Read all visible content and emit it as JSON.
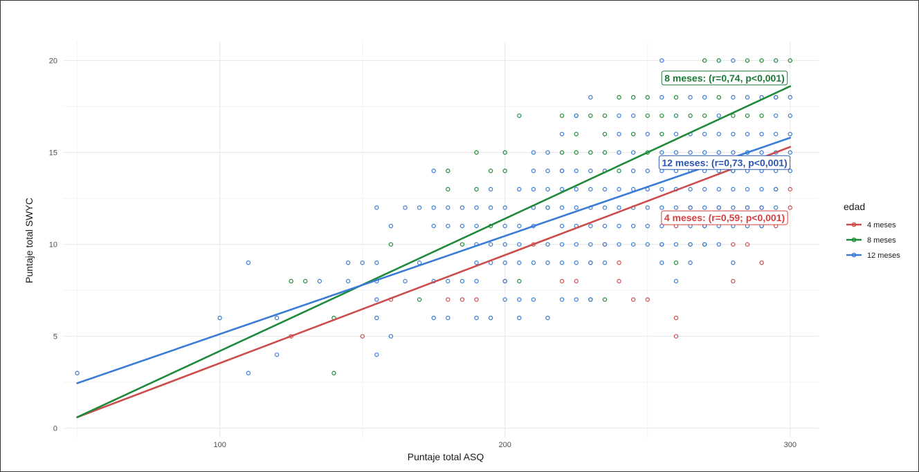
{
  "chart_data": {
    "type": "scatter",
    "xlabel": "Puntaje total ASQ",
    "ylabel": "Puntaje total SWYC",
    "xlim": [
      45,
      310
    ],
    "ylim": [
      0,
      20
    ],
    "x_ticks": [
      100,
      200,
      300
    ],
    "y_ticks": [
      0,
      5,
      10,
      15,
      20
    ],
    "x_tick_labels": [
      "100",
      "200",
      "300"
    ],
    "y_tick_labels": [
      "0",
      "5",
      "10",
      "15",
      "20"
    ],
    "grid": true,
    "legend": {
      "title": "edad",
      "placement": "right",
      "entries": [
        "4 meses",
        "8 meses",
        "12 meses"
      ]
    },
    "series": [
      {
        "name": "4 meses",
        "color": "#cc4c4c",
        "points": [
          [
            125,
            5
          ],
          [
            150,
            5
          ],
          [
            160,
            7
          ],
          [
            180,
            7
          ],
          [
            185,
            7
          ],
          [
            190,
            7
          ],
          [
            200,
            8
          ],
          [
            210,
            10
          ],
          [
            220,
            8
          ],
          [
            220,
            14
          ],
          [
            225,
            8
          ],
          [
            230,
            9
          ],
          [
            235,
            10
          ],
          [
            240,
            9
          ],
          [
            240,
            8
          ],
          [
            245,
            7
          ],
          [
            250,
            7
          ],
          [
            255,
            10
          ],
          [
            260,
            5
          ],
          [
            260,
            6
          ],
          [
            260,
            11
          ],
          [
            265,
            12
          ],
          [
            270,
            11
          ],
          [
            275,
            12
          ],
          [
            280,
            8
          ],
          [
            280,
            10
          ],
          [
            285,
            10
          ],
          [
            285,
            12
          ],
          [
            290,
            9
          ],
          [
            290,
            11
          ],
          [
            290,
            12
          ],
          [
            295,
            11
          ],
          [
            295,
            13
          ],
          [
            300,
            12
          ],
          [
            300,
            13
          ]
        ],
        "fit": {
          "x": [
            50,
            300
          ],
          "y": [
            0.6,
            15.3
          ]
        }
      },
      {
        "name": "8 meses",
        "color": "#1f8a3a",
        "points": [
          [
            125,
            8
          ],
          [
            130,
            8
          ],
          [
            140,
            3
          ],
          [
            140,
            6
          ],
          [
            160,
            10
          ],
          [
            170,
            7
          ],
          [
            180,
            13
          ],
          [
            180,
            14
          ],
          [
            185,
            10
          ],
          [
            190,
            13
          ],
          [
            190,
            15
          ],
          [
            195,
            11
          ],
          [
            195,
            14
          ],
          [
            200,
            14
          ],
          [
            200,
            15
          ],
          [
            205,
            8
          ],
          [
            205,
            17
          ],
          [
            215,
            12
          ],
          [
            220,
            15
          ],
          [
            220,
            17
          ],
          [
            225,
            15
          ],
          [
            225,
            16
          ],
          [
            225,
            17
          ],
          [
            230,
            7
          ],
          [
            230,
            15
          ],
          [
            230,
            17
          ],
          [
            235,
            7
          ],
          [
            235,
            15
          ],
          [
            235,
            16
          ],
          [
            235,
            17
          ],
          [
            240,
            14
          ],
          [
            240,
            18
          ],
          [
            245,
            16
          ],
          [
            245,
            18
          ],
          [
            250,
            15
          ],
          [
            250,
            17
          ],
          [
            250,
            18
          ],
          [
            255,
            16
          ],
          [
            255,
            17
          ],
          [
            260,
            9
          ],
          [
            260,
            17
          ],
          [
            260,
            18
          ],
          [
            265,
            10
          ],
          [
            265,
            17
          ],
          [
            270,
            10
          ],
          [
            270,
            17
          ],
          [
            270,
            20
          ],
          [
            275,
            18
          ],
          [
            275,
            20
          ],
          [
            280,
            14
          ],
          [
            280,
            17
          ],
          [
            280,
            19
          ],
          [
            285,
            15
          ],
          [
            285,
            17
          ],
          [
            285,
            20
          ],
          [
            290,
            17
          ],
          [
            290,
            19
          ],
          [
            290,
            20
          ],
          [
            295,
            18
          ],
          [
            295,
            20
          ],
          [
            300,
            20
          ]
        ],
        "fit": {
          "x": [
            50,
            300
          ],
          "y": [
            0.6,
            18.6
          ]
        }
      },
      {
        "name": "12 meses",
        "color": "#3a7bd5",
        "points": [
          [
            50,
            3
          ],
          [
            100,
            6
          ],
          [
            110,
            3
          ],
          [
            110,
            9
          ],
          [
            120,
            4
          ],
          [
            120,
            6
          ],
          [
            135,
            8
          ],
          [
            145,
            8
          ],
          [
            145,
            9
          ],
          [
            150,
            9
          ],
          [
            155,
            4
          ],
          [
            155,
            6
          ],
          [
            155,
            7
          ],
          [
            155,
            8
          ],
          [
            155,
            9
          ],
          [
            155,
            12
          ],
          [
            160,
            5
          ],
          [
            160,
            11
          ],
          [
            165,
            8
          ],
          [
            165,
            12
          ],
          [
            170,
            9
          ],
          [
            170,
            12
          ],
          [
            175,
            6
          ],
          [
            175,
            8
          ],
          [
            175,
            11
          ],
          [
            175,
            12
          ],
          [
            175,
            14
          ],
          [
            180,
            6
          ],
          [
            180,
            8
          ],
          [
            180,
            11
          ],
          [
            180,
            12
          ],
          [
            185,
            8
          ],
          [
            185,
            11
          ],
          [
            185,
            12
          ],
          [
            190,
            6
          ],
          [
            190,
            8
          ],
          [
            190,
            9
          ],
          [
            190,
            10
          ],
          [
            190,
            11
          ],
          [
            190,
            12
          ],
          [
            195,
            6
          ],
          [
            195,
            9
          ],
          [
            195,
            10
          ],
          [
            195,
            12
          ],
          [
            195,
            13
          ],
          [
            200,
            7
          ],
          [
            200,
            8
          ],
          [
            200,
            9
          ],
          [
            200,
            10
          ],
          [
            200,
            11
          ],
          [
            200,
            12
          ],
          [
            205,
            6
          ],
          [
            205,
            7
          ],
          [
            205,
            9
          ],
          [
            205,
            10
          ],
          [
            205,
            11
          ],
          [
            205,
            13
          ],
          [
            210,
            7
          ],
          [
            210,
            9
          ],
          [
            210,
            11
          ],
          [
            210,
            12
          ],
          [
            210,
            13
          ],
          [
            210,
            14
          ],
          [
            210,
            15
          ],
          [
            215,
            6
          ],
          [
            215,
            9
          ],
          [
            215,
            10
          ],
          [
            215,
            12
          ],
          [
            215,
            13
          ],
          [
            215,
            14
          ],
          [
            215,
            15
          ],
          [
            220,
            7
          ],
          [
            220,
            9
          ],
          [
            220,
            10
          ],
          [
            220,
            11
          ],
          [
            220,
            12
          ],
          [
            220,
            13
          ],
          [
            220,
            14
          ],
          [
            220,
            16
          ],
          [
            225,
            7
          ],
          [
            225,
            9
          ],
          [
            225,
            10
          ],
          [
            225,
            11
          ],
          [
            225,
            12
          ],
          [
            225,
            13
          ],
          [
            225,
            14
          ],
          [
            225,
            17
          ],
          [
            230,
            7
          ],
          [
            230,
            9
          ],
          [
            230,
            10
          ],
          [
            230,
            11
          ],
          [
            230,
            12
          ],
          [
            230,
            13
          ],
          [
            230,
            14
          ],
          [
            230,
            18
          ],
          [
            235,
            9
          ],
          [
            235,
            10
          ],
          [
            235,
            11
          ],
          [
            235,
            12
          ],
          [
            235,
            13
          ],
          [
            235,
            14
          ],
          [
            240,
            10
          ],
          [
            240,
            11
          ],
          [
            240,
            12
          ],
          [
            240,
            13
          ],
          [
            240,
            15
          ],
          [
            240,
            16
          ],
          [
            240,
            17
          ],
          [
            245,
            10
          ],
          [
            245,
            11
          ],
          [
            245,
            12
          ],
          [
            245,
            13
          ],
          [
            245,
            14
          ],
          [
            245,
            15
          ],
          [
            245,
            17
          ],
          [
            250,
            10
          ],
          [
            250,
            11
          ],
          [
            250,
            12
          ],
          [
            250,
            13
          ],
          [
            250,
            14
          ],
          [
            250,
            16
          ],
          [
            255,
            9
          ],
          [
            255,
            10
          ],
          [
            255,
            11
          ],
          [
            255,
            12
          ],
          [
            255,
            13
          ],
          [
            255,
            14
          ],
          [
            255,
            15
          ],
          [
            255,
            18
          ],
          [
            255,
            20
          ],
          [
            260,
            8
          ],
          [
            260,
            10
          ],
          [
            260,
            12
          ],
          [
            260,
            13
          ],
          [
            260,
            14
          ],
          [
            260,
            15
          ],
          [
            260,
            16
          ],
          [
            265,
            9
          ],
          [
            265,
            10
          ],
          [
            265,
            11
          ],
          [
            265,
            12
          ],
          [
            265,
            13
          ],
          [
            265,
            14
          ],
          [
            265,
            15
          ],
          [
            265,
            16
          ],
          [
            265,
            18
          ],
          [
            270,
            10
          ],
          [
            270,
            11
          ],
          [
            270,
            12
          ],
          [
            270,
            13
          ],
          [
            270,
            14
          ],
          [
            270,
            15
          ],
          [
            270,
            16
          ],
          [
            270,
            18
          ],
          [
            270,
            19
          ],
          [
            275,
            10
          ],
          [
            275,
            11
          ],
          [
            275,
            12
          ],
          [
            275,
            13
          ],
          [
            275,
            14
          ],
          [
            275,
            15
          ],
          [
            275,
            16
          ],
          [
            275,
            17
          ],
          [
            280,
            9
          ],
          [
            280,
            11
          ],
          [
            280,
            12
          ],
          [
            280,
            13
          ],
          [
            280,
            14
          ],
          [
            280,
            15
          ],
          [
            280,
            16
          ],
          [
            280,
            18
          ],
          [
            280,
            20
          ],
          [
            285,
            11
          ],
          [
            285,
            12
          ],
          [
            285,
            13
          ],
          [
            285,
            14
          ],
          [
            285,
            15
          ],
          [
            285,
            16
          ],
          [
            285,
            18
          ],
          [
            290,
            11
          ],
          [
            290,
            12
          ],
          [
            290,
            13
          ],
          [
            290,
            14
          ],
          [
            290,
            15
          ],
          [
            290,
            16
          ],
          [
            290,
            18
          ],
          [
            295,
            12
          ],
          [
            295,
            13
          ],
          [
            295,
            14
          ],
          [
            295,
            15
          ],
          [
            295,
            16
          ],
          [
            295,
            17
          ],
          [
            295,
            18
          ],
          [
            300,
            14
          ],
          [
            300,
            15
          ],
          [
            300,
            16
          ],
          [
            300,
            17
          ],
          [
            300,
            18
          ]
        ],
        "fit": {
          "x": [
            50,
            300
          ],
          "y": [
            2.45,
            15.8
          ]
        }
      }
    ],
    "annotations": [
      {
        "text": "8 meses: (r=0,74, p<0,001)",
        "series": "8 meses",
        "color": "#1a7a33",
        "x": 277,
        "y": 19.05
      },
      {
        "text": "12 meses: (r=0,73, p<0,001)",
        "series": "12 meses",
        "color": "#2a55b0",
        "x": 277,
        "y": 14.45
      },
      {
        "text": "4 meses: (r=0,59; p<0,001)",
        "series": "4 meses",
        "color": "#d84040",
        "x": 277,
        "y": 11.45
      }
    ]
  }
}
